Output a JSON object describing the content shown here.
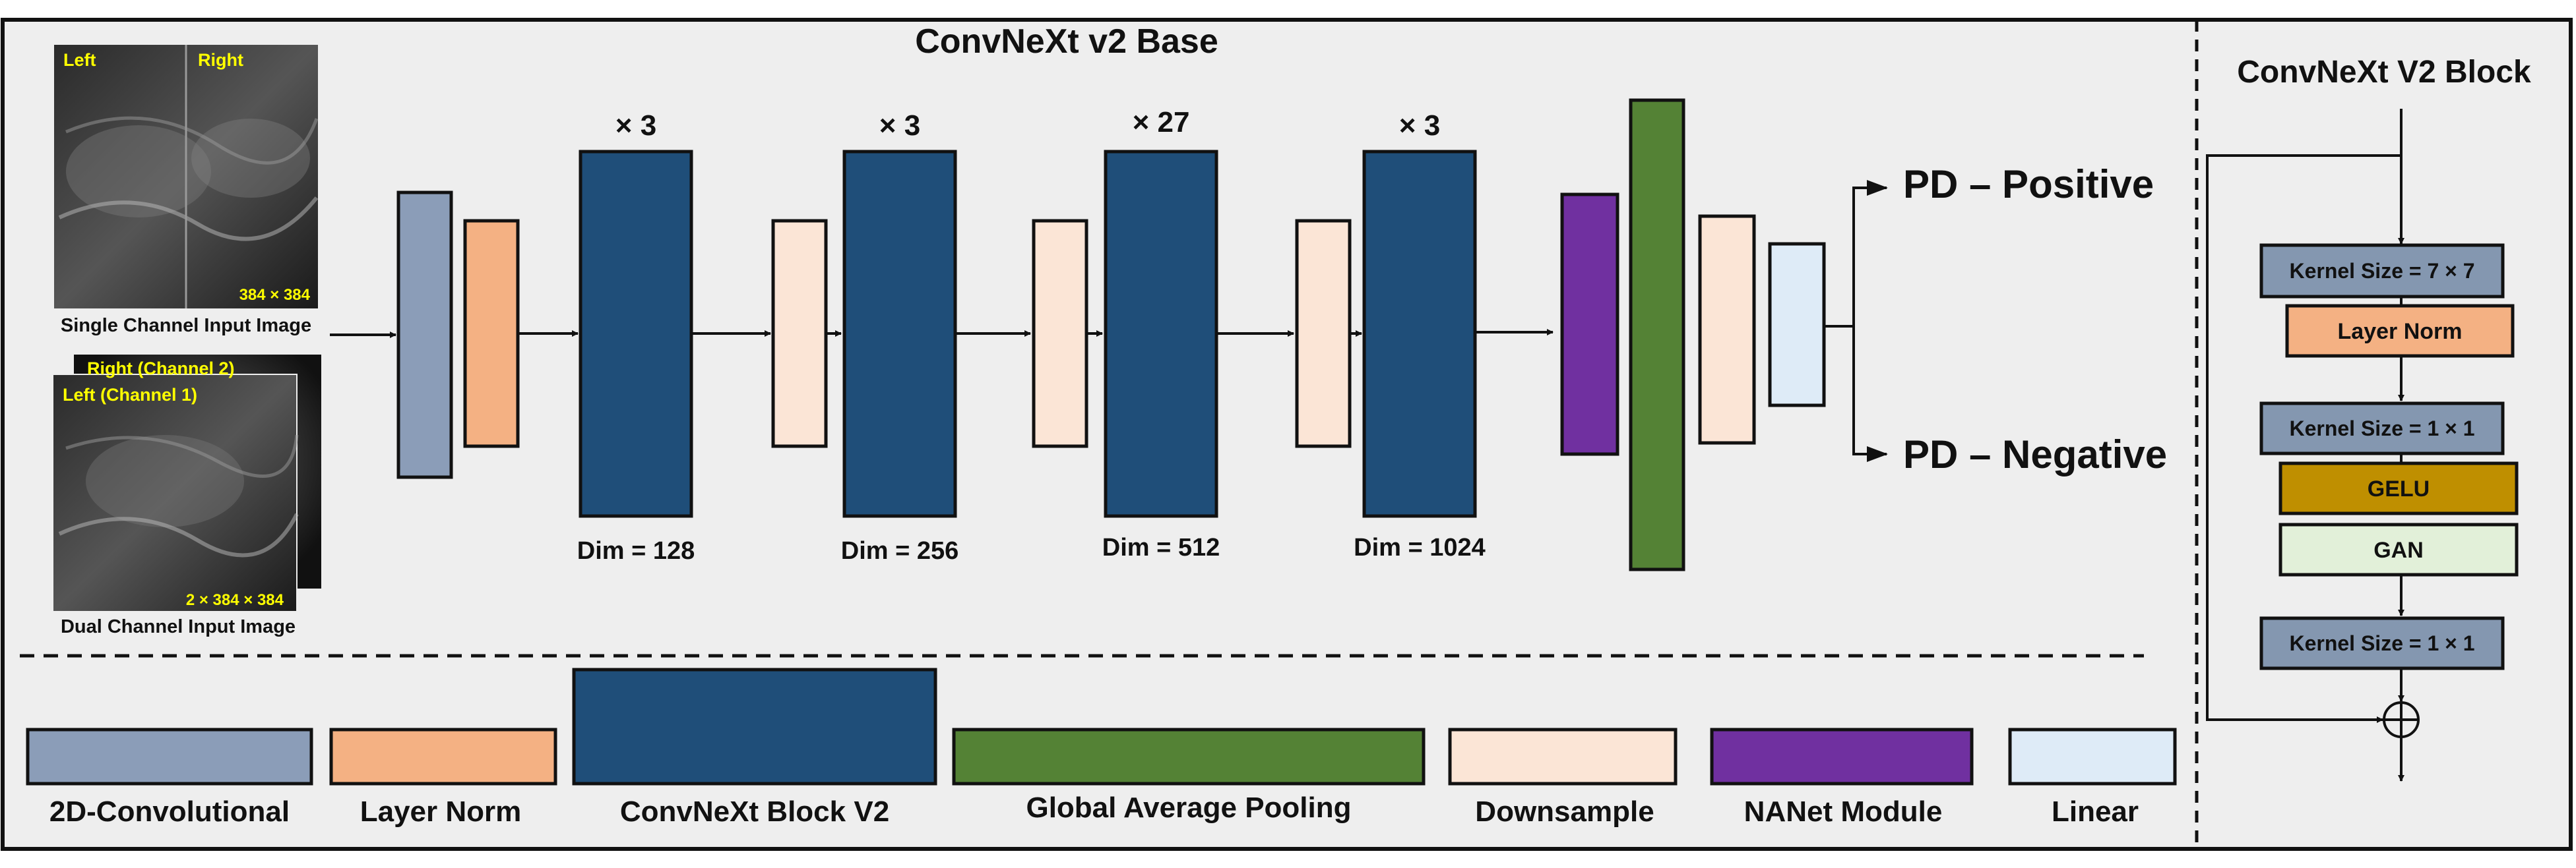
{
  "title": "ConvNeXt v2 Base",
  "block_title": "ConvNeXt V2 Block",
  "inputs": {
    "single": {
      "caption": "Single Channel Input Image",
      "label_left": "Left",
      "label_right": "Right",
      "size": "384 × 384"
    },
    "dual": {
      "caption": "Dual Channel Input Image",
      "label_right": "Right (Channel 2)",
      "label_left": "Left (Channel 1)",
      "size": "2 × 384 × 384"
    }
  },
  "stages": [
    {
      "repeat": "× 3",
      "dim": "Dim = 128"
    },
    {
      "repeat": "× 3",
      "dim": "Dim = 256"
    },
    {
      "repeat": "× 27",
      "dim": "Dim = 512"
    },
    {
      "repeat": "× 3",
      "dim": "Dim = 1024"
    }
  ],
  "outputs": {
    "positive": "PD – Positive",
    "negative": "PD – Negative"
  },
  "block_layers": [
    {
      "label": "Kernel Size = 7 × 7"
    },
    {
      "label": "Layer Norm"
    },
    {
      "label": "Kernel Size = 1 × 1"
    },
    {
      "label": "GELU"
    },
    {
      "label": "GAN"
    },
    {
      "label": "Kernel Size = 1 × 1"
    }
  ],
  "legend": [
    {
      "label": "2D-Convolutional"
    },
    {
      "label": "Layer Norm"
    },
    {
      "label": "ConvNeXt Block V2"
    },
    {
      "label": "Global Average Pooling"
    },
    {
      "label": "Downsample"
    },
    {
      "label": "NANet Module"
    },
    {
      "label": "Linear"
    }
  ],
  "colors": {
    "conv2d": "#8b9db8",
    "layer_norm": "#f4b183",
    "convnext_block": "#1f4e79",
    "gap": "#548235",
    "downsample": "#fbe5d6",
    "nanet": "#7030a0",
    "linear": "#deebf7",
    "block_kernel": "#8497b0",
    "gelu": "#bf8f00",
    "gan": "#e2f0d9",
    "panel": "#eeeeee",
    "text": "#111111",
    "input_label": "#ffff00"
  },
  "icons": {
    "sum": "circled-plus-icon"
  }
}
